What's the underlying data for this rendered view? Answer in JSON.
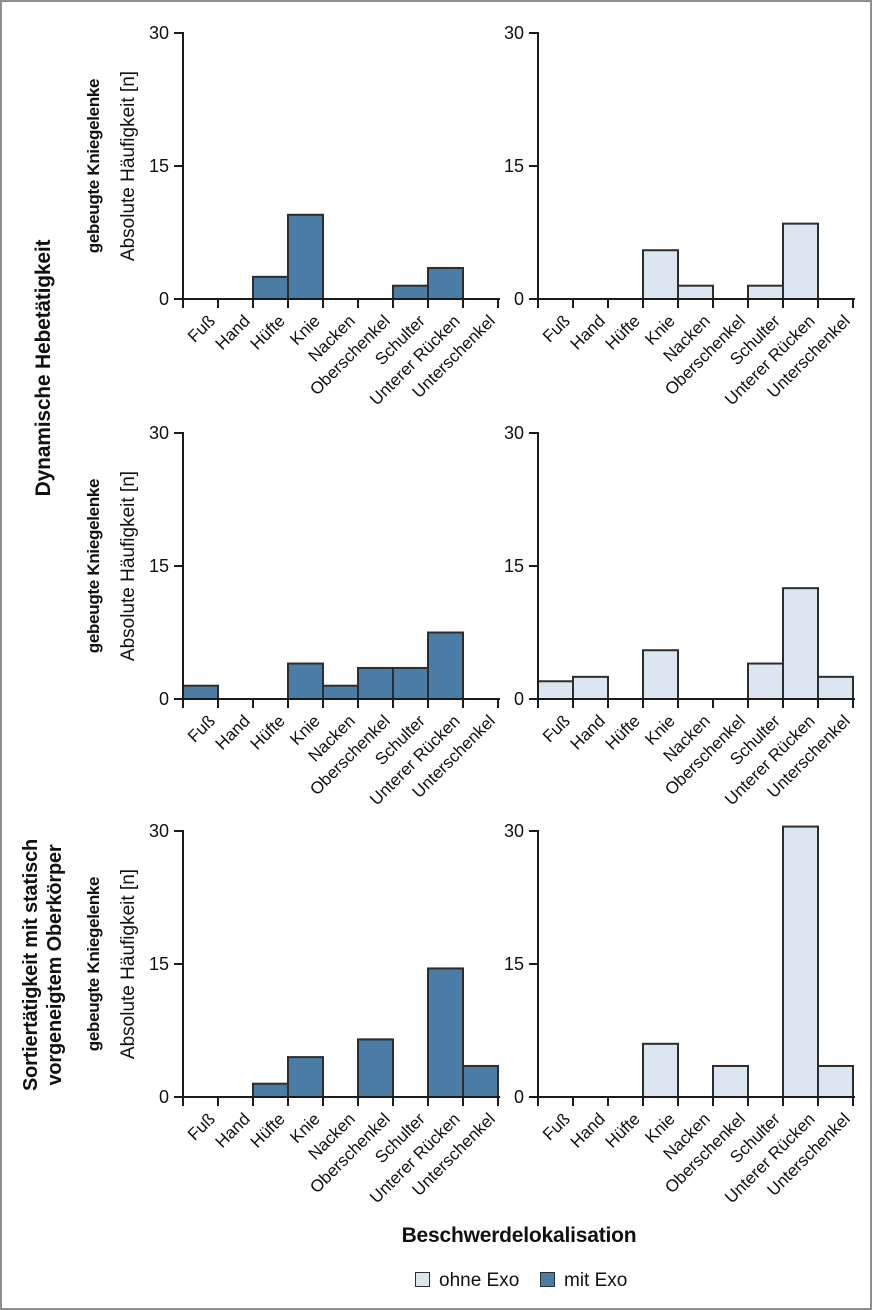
{
  "figure": {
    "x_axis_title": "Beschwerdelokalisation",
    "y_axis_label": "Absolute Häufigkeit [n]",
    "knee_label": "gebeugte Kniegelenke",
    "group_labels": [
      "Dynamische Hebetätigkeit",
      "Sortiertätigkeit mit statisch\nvorgeneigtem Oberkörper"
    ],
    "legend": [
      {
        "label": "ohne Exo",
        "color": "#dbe6f0"
      },
      {
        "label": "mit Exo",
        "color": "#4b7ca5"
      }
    ],
    "colors": {
      "ohne_exo_fill": "#dbe6f0",
      "mit_exo_fill": "#4b7ca5",
      "bar_border": "#2b2d2e",
      "axis": "#1b1b1b"
    }
  },
  "chart_data": {
    "type": "bar",
    "categories": [
      "Fuß",
      "Hand",
      "Hüfte",
      "Knie",
      "Nacken",
      "Oberschenkel",
      "Schulter",
      "Unterer Rücken",
      "Unterschenkel"
    ],
    "xlabel": "Beschwerdelokalisation",
    "ylabel": "Absolute Häufigkeit [n]",
    "ylim": [
      0,
      30
    ],
    "yticks": [
      0,
      15,
      30
    ],
    "grid": false,
    "legend_position": "bottom",
    "panels": [
      {
        "activity": "Dynamische Hebetätigkeit",
        "sub_label": "gebeugte Kniegelenke",
        "condition": "mit Exo",
        "values": [
          0,
          0,
          2.5,
          9.5,
          0,
          0,
          1.5,
          3.5,
          0
        ]
      },
      {
        "activity": "Dynamische Hebetätigkeit",
        "sub_label": "gebeugte Kniegelenke",
        "condition": "ohne Exo",
        "values": [
          0,
          0,
          0,
          5.5,
          1.5,
          0,
          1.5,
          8.5,
          0
        ]
      },
      {
        "activity": "Dynamische Hebetätigkeit",
        "sub_label": "gebeugte Kniegelenke",
        "condition": "mit Exo",
        "values": [
          1.5,
          0,
          0,
          4,
          1.5,
          3.5,
          3.5,
          7.5,
          0
        ]
      },
      {
        "activity": "Dynamische Hebetätigkeit",
        "sub_label": "gebeugte Kniegelenke",
        "condition": "ohne Exo",
        "values": [
          2,
          2.5,
          0,
          5.5,
          0,
          0,
          4,
          12.5,
          2.5
        ]
      },
      {
        "activity": "Sortiertätigkeit mit statisch vorgeneigtem Oberkörper",
        "sub_label": "gebeugte Kniegelenke",
        "condition": "mit Exo",
        "values": [
          0,
          0,
          1.5,
          4.5,
          0,
          6.5,
          0,
          14.5,
          3.5
        ]
      },
      {
        "activity": "Sortiertätigkeit mit statisch vorgeneigtem Oberkörper",
        "sub_label": "gebeugte Kniegelenke",
        "condition": "ohne Exo",
        "values": [
          0,
          0,
          0,
          6,
          0,
          3.5,
          0,
          30.5,
          3.5
        ]
      }
    ]
  }
}
